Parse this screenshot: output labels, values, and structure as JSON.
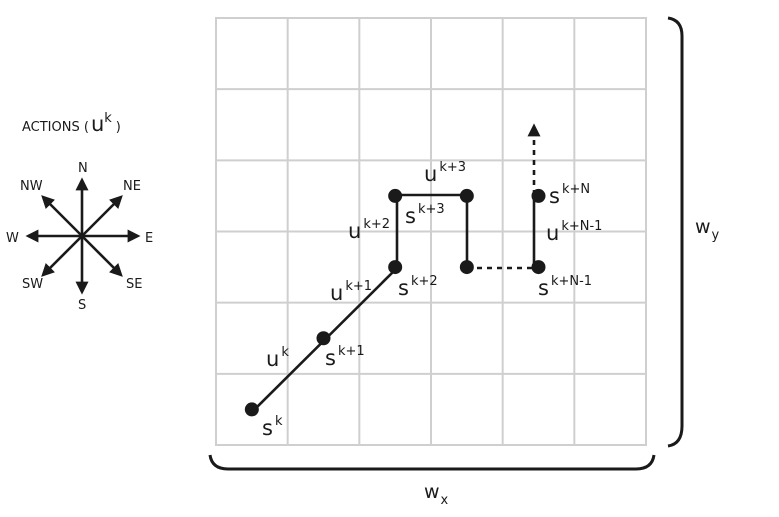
{
  "legend": {
    "title": "ACTIONS (",
    "title_u": "u",
    "title_k": "k",
    "title_close": ")",
    "directions": {
      "n": "N",
      "ne": "NE",
      "e": "E",
      "se": "SE",
      "s": "S",
      "sw": "SW",
      "w": "W",
      "nw": "NW"
    }
  },
  "grid": {
    "rows": 6,
    "cols": 6
  },
  "path": {
    "nodes": [
      {
        "id": "sk",
        "col": 0.5,
        "row": 5.5
      },
      {
        "id": "sk1",
        "col": 1.5,
        "row": 4.5
      },
      {
        "id": "sk2",
        "col": 2.5,
        "row": 3.5
      },
      {
        "id": "sk3",
        "col": 2.5,
        "row": 2.5
      },
      {
        "id": "sk3b",
        "col": 3.5,
        "row": 2.5
      },
      {
        "id": "sk3c",
        "col": 3.5,
        "row": 3.5
      },
      {
        "id": "skN1",
        "col": 4.5,
        "row": 3.5
      },
      {
        "id": "skN",
        "col": 4.5,
        "row": 2.5
      }
    ]
  },
  "labels": {
    "s": "s",
    "u": "u",
    "s_k": "k",
    "s_k1": "k+1",
    "s_k2": "k+2",
    "s_k3": "k+3",
    "s_kN1": "k+N-1",
    "s_kN": "k+N",
    "u_k": "k",
    "u_k1": "k+1",
    "u_k2": "k+2",
    "u_k3": "k+3",
    "u_kN1": "k+N-1"
  },
  "axes": {
    "wx": "w",
    "wx_sub": "x",
    "wy": "w",
    "wy_sub": "y"
  }
}
